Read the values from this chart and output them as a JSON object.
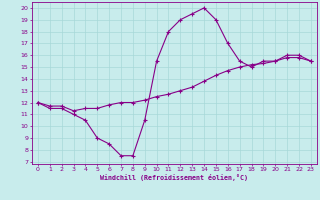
{
  "xlabel": "Windchill (Refroidissement éolien,°C)",
  "bg_color": "#c8ecec",
  "grid_color": "#b0d8d8",
  "line_color": "#880088",
  "x_ticks": [
    0,
    1,
    2,
    3,
    4,
    5,
    6,
    7,
    8,
    9,
    10,
    11,
    12,
    13,
    14,
    15,
    16,
    17,
    18,
    19,
    20,
    21,
    22,
    23
  ],
  "y_ticks": [
    7,
    8,
    9,
    10,
    11,
    12,
    13,
    14,
    15,
    16,
    17,
    18,
    19,
    20
  ],
  "ylim": [
    6.8,
    20.5
  ],
  "xlim": [
    -0.5,
    23.5
  ],
  "curve1_x": [
    0,
    1,
    2,
    3,
    4,
    5,
    6,
    7,
    8,
    9,
    10,
    11,
    12,
    13,
    14,
    15,
    16,
    17,
    18,
    19,
    20,
    21,
    22,
    23
  ],
  "curve1_y": [
    12.0,
    11.5,
    11.5,
    11.0,
    10.5,
    9.0,
    8.5,
    7.5,
    7.5,
    10.5,
    15.5,
    18.0,
    19.0,
    19.5,
    20.0,
    19.0,
    17.0,
    15.5,
    15.0,
    15.5,
    15.5,
    16.0,
    16.0,
    15.5
  ],
  "curve2_x": [
    0,
    1,
    2,
    3,
    4,
    5,
    6,
    7,
    8,
    9,
    10,
    11,
    12,
    13,
    14,
    15,
    16,
    17,
    18,
    19,
    20,
    21,
    22,
    23
  ],
  "curve2_y": [
    12.0,
    11.7,
    11.7,
    11.3,
    11.5,
    11.5,
    11.8,
    12.0,
    12.0,
    12.2,
    12.5,
    12.7,
    13.0,
    13.3,
    13.8,
    14.3,
    14.7,
    15.0,
    15.2,
    15.3,
    15.5,
    15.8,
    15.8,
    15.5
  ]
}
